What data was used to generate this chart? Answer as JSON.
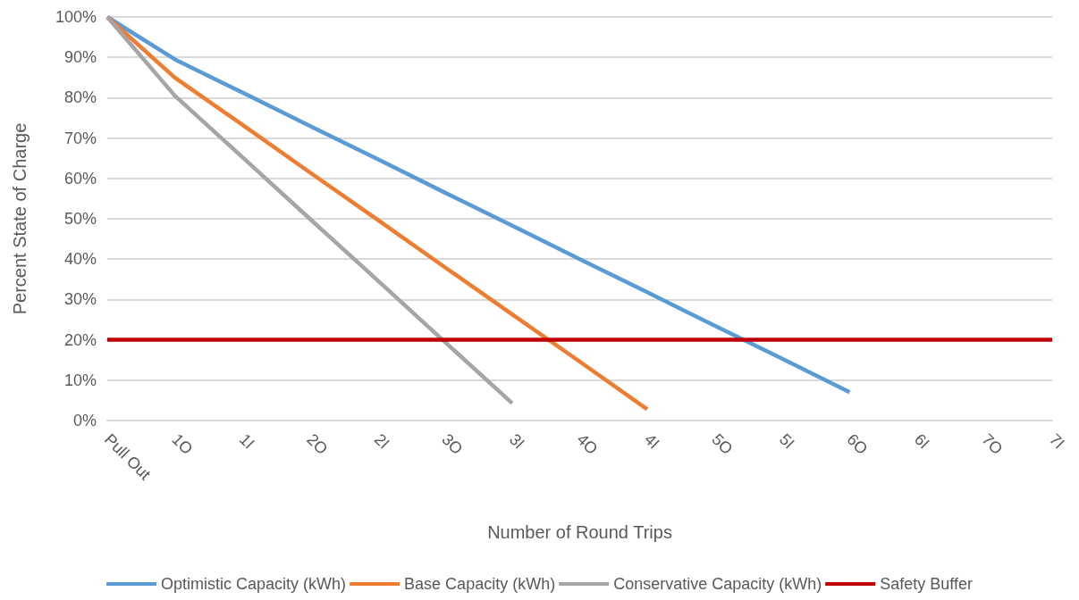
{
  "chart_data": {
    "type": "line",
    "xlabel": "Number of Round Trips",
    "ylabel": "Percent State of Charge",
    "categories": [
      "Pull Out",
      "1O",
      "1I",
      "2O",
      "2I",
      "3O",
      "3I",
      "4O",
      "4I",
      "5O",
      "5I",
      "6O",
      "6I",
      "7O",
      "7I"
    ],
    "series": [
      {
        "name": "Optimistic Capacity (kWh)",
        "color": "#5b9bd5",
        "values": [
          100,
          89.5,
          81.3,
          73,
          64.8,
          56.5,
          48.3,
          40,
          31.8,
          23.5,
          15.3,
          7,
          null,
          null,
          null
        ]
      },
      {
        "name": "Base Capacity (kWh)",
        "color": "#ed7d31",
        "values": [
          100,
          85,
          73.3,
          61.5,
          49.8,
          38,
          26.3,
          14.6,
          2.8,
          null,
          null,
          null,
          null,
          null,
          null
        ]
      },
      {
        "name": "Conservative Capacity (kWh)",
        "color": "#a5a5a5",
        "values": [
          100,
          80.5,
          65.3,
          50,
          34.8,
          19.5,
          4.3,
          null,
          null,
          null,
          null,
          null,
          null,
          null,
          null
        ]
      },
      {
        "name": "Safety Buffer",
        "color": "#c00000",
        "values": [
          20,
          20,
          20,
          20,
          20,
          20,
          20,
          20,
          20,
          20,
          20,
          20,
          20,
          20,
          20
        ]
      }
    ],
    "ylim": [
      0,
      100
    ],
    "yticks": [
      {
        "value": 0,
        "label": "0%"
      },
      {
        "value": 10,
        "label": "10%"
      },
      {
        "value": 20,
        "label": "20%"
      },
      {
        "value": 30,
        "label": "30%"
      },
      {
        "value": 40,
        "label": "40%"
      },
      {
        "value": 50,
        "label": "50%"
      },
      {
        "value": 60,
        "label": "60%"
      },
      {
        "value": 70,
        "label": "70%"
      },
      {
        "value": 80,
        "label": "80%"
      },
      {
        "value": 90,
        "label": "90%"
      },
      {
        "value": 100,
        "label": "100%"
      }
    ],
    "grid": "y",
    "legend": "bottom",
    "marker": "none",
    "line_style": "solid"
  }
}
